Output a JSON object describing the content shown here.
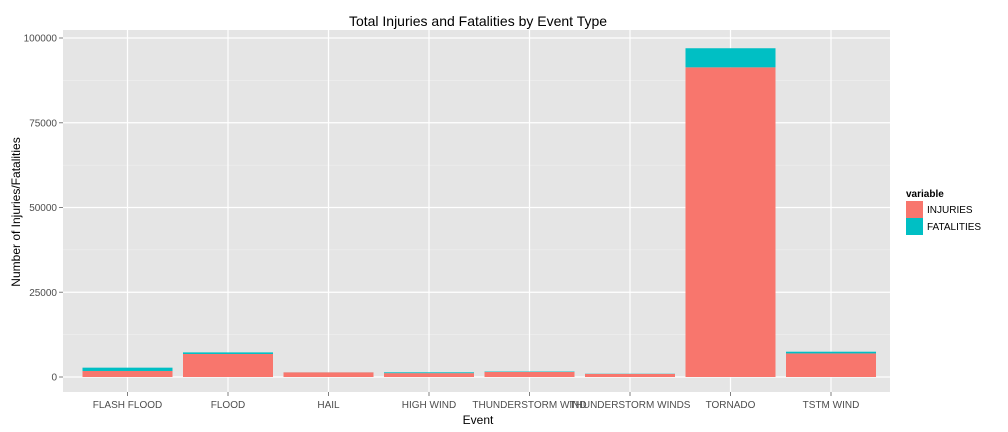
{
  "chart_data": {
    "type": "bar",
    "stacked": true,
    "title": "Total Injuries and Fatalities by Event Type",
    "xlabel": "Event",
    "ylabel": "Number of Injuries/Fatalities",
    "categories": [
      "FLASH FLOOD",
      "FLOOD",
      "HAIL",
      "HIGH WIND",
      "THUNDERSTORM WIND",
      "THUNDERSTORM WINDS",
      "TORNADO",
      "TSTM WIND"
    ],
    "series": [
      {
        "name": "INJURIES",
        "color": "#F8766D",
        "values": [
          1777,
          6789,
          1361,
          1137,
          1488,
          908,
          91346,
          6957
        ]
      },
      {
        "name": "FATALITIES",
        "color": "#00BFC4",
        "values": [
          978,
          470,
          15,
          248,
          133,
          64,
          5633,
          504
        ]
      }
    ],
    "ylim": [
      0,
      100000
    ],
    "yticks": [
      "0",
      "25000",
      "50000",
      "75000",
      "100000"
    ],
    "grid": true,
    "legend": {
      "title": "variable",
      "placement": "right"
    }
  }
}
